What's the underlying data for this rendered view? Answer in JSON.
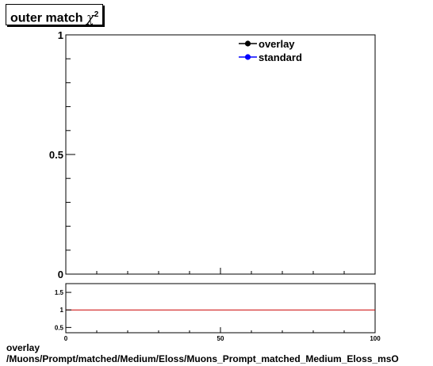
{
  "title": {
    "main": "outer match",
    "symbol": "χ",
    "sup": "2"
  },
  "chart_data": [
    {
      "type": "line",
      "title": "outer match χ2",
      "xlim": [
        0,
        100
      ],
      "ylim": [
        0,
        1
      ],
      "y_ticks": [
        0,
        0.5,
        1
      ],
      "y_tick_labels": [
        "0",
        "0.5",
        "1"
      ],
      "legend": {
        "placement": "top-right",
        "entries": [
          {
            "label": "overlay",
            "color": "#000000"
          },
          {
            "label": "standard",
            "color": "#0000ff"
          }
        ]
      },
      "series": [
        {
          "name": "overlay",
          "x": [],
          "y": []
        },
        {
          "name": "standard",
          "x": [],
          "y": []
        }
      ]
    },
    {
      "type": "line",
      "xlim": [
        0,
        100
      ],
      "ylim": [
        0.35,
        1.75
      ],
      "x_ticks": [
        0,
        50,
        100
      ],
      "x_tick_labels": [
        "0",
        "50",
        "100"
      ],
      "y_ticks": [
        0.5,
        1,
        1.5
      ],
      "y_tick_labels": [
        "0.5",
        "1",
        "1.5"
      ],
      "reference_line": {
        "y": 1,
        "color": "#cc0000"
      }
    }
  ],
  "footer": {
    "line1": "overlay",
    "line2": "/Muons/Prompt/matched/Medium/Eloss/Muons_Prompt_matched_Medium_Eloss_msO"
  }
}
